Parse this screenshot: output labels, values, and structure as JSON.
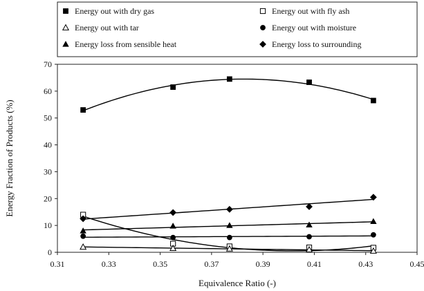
{
  "chart_data": {
    "type": "scatter",
    "title": "",
    "xlabel": "Equivalence Ratio (-)",
    "ylabel": "Energy Fraction of Products (%)",
    "xlim": [
      0.31,
      0.45
    ],
    "ylim": [
      0,
      70
    ],
    "x_ticks": [
      "0.31",
      "0.33",
      "0.35",
      "0.37",
      "0.39",
      "0.41",
      "0.43",
      "0.45"
    ],
    "y_ticks": [
      "0",
      "10",
      "20",
      "30",
      "40",
      "50",
      "60",
      "70"
    ],
    "x_tick_values": [
      0.31,
      0.33,
      0.35,
      0.37,
      0.39,
      0.41,
      0.43,
      0.45
    ],
    "y_tick_values": [
      0,
      10,
      20,
      30,
      40,
      50,
      60,
      70
    ],
    "grid": false,
    "legend_position": "top",
    "x": [
      0.32,
      0.355,
      0.377,
      0.408,
      0.433
    ],
    "series": [
      {
        "name": "Energy out with dry gas",
        "marker": "square-filled",
        "fit": "quadratic",
        "values": [
          53,
          61.5,
          64.5,
          63.3,
          56.5
        ]
      },
      {
        "name": "Energy out with fly ash",
        "marker": "square-open",
        "fit": "quadratic",
        "values": [
          14,
          3.2,
          2.2,
          1.8,
          1.7
        ]
      },
      {
        "name": "Energy out with tar",
        "marker": "triangle-open",
        "fit": "linear",
        "values": [
          2,
          1.5,
          1.3,
          1.0,
          0.5
        ]
      },
      {
        "name": "Energy out with moisture",
        "marker": "circle-filled",
        "fit": "linear",
        "values": [
          6,
          5.5,
          5.5,
          5.8,
          6.5
        ]
      },
      {
        "name": "Energy loss from sensible heat",
        "marker": "triangle-filled",
        "fit": "linear",
        "values": [
          8,
          9.8,
          10,
          10.2,
          11.5
        ]
      },
      {
        "name": "Energy loss to surrounding",
        "marker": "diamond-filled",
        "fit": "linear",
        "values": [
          12.5,
          14.8,
          16,
          17,
          20.5
        ]
      }
    ]
  }
}
